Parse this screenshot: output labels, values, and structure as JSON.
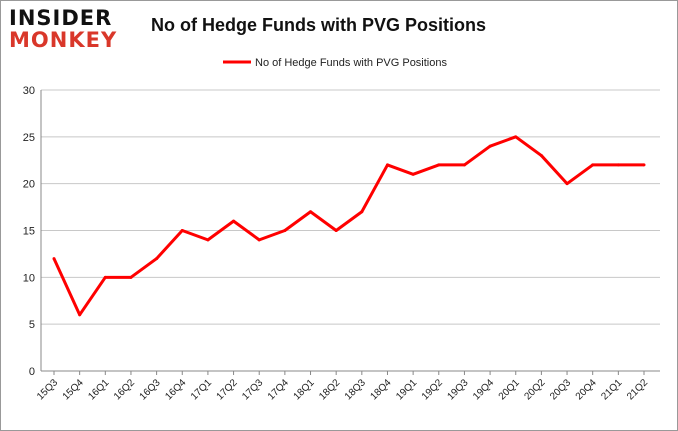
{
  "logo": {
    "line1": "INSIDER",
    "line2": "MONKEY"
  },
  "chart_data": {
    "type": "line",
    "title": "No of Hedge Funds with PVG Positions",
    "legend": {
      "position": "top",
      "entries": [
        "No of Hedge Funds with PVG Positions"
      ]
    },
    "xlabel": "",
    "ylabel": "",
    "ylim": [
      0,
      30
    ],
    "yticks": [
      0,
      5,
      10,
      15,
      20,
      25,
      30
    ],
    "grid": true,
    "color": "#ff0000",
    "categories": [
      "15Q3",
      "15Q4",
      "16Q1",
      "16Q2",
      "16Q3",
      "16Q4",
      "17Q1",
      "17Q2",
      "17Q3",
      "17Q4",
      "18Q1",
      "18Q2",
      "18Q3",
      "18Q4",
      "19Q1",
      "19Q2",
      "19Q3",
      "19Q4",
      "20Q1",
      "20Q2",
      "20Q3",
      "20Q4",
      "21Q1",
      "21Q2"
    ],
    "series": [
      {
        "name": "No of Hedge Funds with PVG Positions",
        "values": [
          12,
          6,
          10,
          10,
          12,
          15,
          14,
          16,
          14,
          15,
          17,
          15,
          17,
          22,
          21,
          22,
          22,
          24,
          25,
          23,
          20,
          22,
          22,
          22
        ]
      }
    ]
  }
}
